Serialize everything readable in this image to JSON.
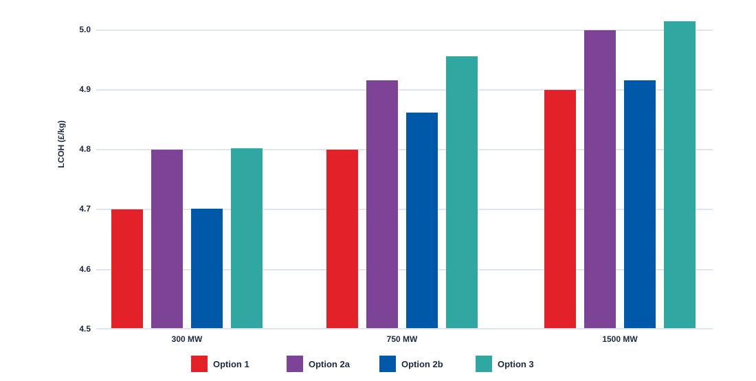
{
  "chart_data": {
    "type": "bar",
    "title": "",
    "xlabel": "",
    "ylabel": "LCOH (£/kg)",
    "categories": [
      "300 MW",
      "750 MW",
      "1500 MW"
    ],
    "series": [
      {
        "name": "Option 1",
        "color": "#e32129",
        "values": [
          4.7,
          4.8,
          4.9
        ]
      },
      {
        "name": "Option 2a",
        "color": "#7c4397",
        "values": [
          4.8,
          4.916,
          5.0
        ]
      },
      {
        "name": "Option 2b",
        "color": "#0058a9",
        "values": [
          4.702,
          4.862,
          4.916
        ]
      },
      {
        "name": "Option 3",
        "color": "#30a7a1",
        "values": [
          4.802,
          4.956,
          5.014
        ]
      }
    ],
    "ylim": [
      4.5,
      5.05
    ],
    "yticks": [
      "4.5",
      "4.6",
      "4.7",
      "4.8",
      "4.9",
      "5.0"
    ],
    "grid": "horizontal",
    "legend_position": "bottom"
  },
  "colors": {
    "background": "#ffffff",
    "text": "#1b2940",
    "gridline": "#dfe5ec"
  }
}
